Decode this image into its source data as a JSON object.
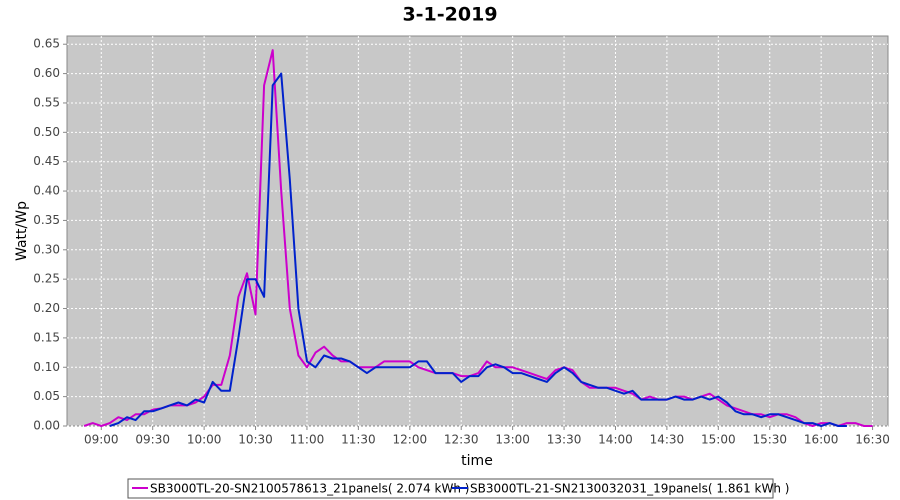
{
  "chart_data": {
    "type": "line",
    "title": "3-1-2019",
    "xlabel": "time",
    "ylabel": "Watt/Wp",
    "x": [
      530,
      535,
      540,
      545,
      550,
      555,
      560,
      565,
      570,
      575,
      580,
      585,
      590,
      595,
      600,
      605,
      610,
      615,
      620,
      625,
      630,
      635,
      640,
      645,
      650,
      655,
      660,
      665,
      670,
      675,
      680,
      685,
      690,
      695,
      700,
      705,
      710,
      715,
      720,
      725,
      730,
      735,
      740,
      745,
      750,
      755,
      760,
      765,
      770,
      775,
      780,
      785,
      790,
      795,
      800,
      805,
      810,
      815,
      820,
      825,
      830,
      835,
      840,
      845,
      850,
      855,
      860,
      865,
      870,
      875,
      880,
      885,
      890,
      895,
      900,
      905,
      910,
      915,
      920,
      925,
      930,
      935,
      940,
      945,
      950,
      955,
      960,
      965,
      970,
      975,
      980,
      985,
      990
    ],
    "series": [
      {
        "name": "SB3000TL-20-SN2100578613_21panels( 2.074 kWh )",
        "color": "#cc00cc",
        "values": [
          0,
          0.005,
          0,
          0.005,
          0.015,
          0.01,
          0.02,
          0.02,
          0.028,
          0.03,
          0.035,
          0.035,
          0.035,
          0.04,
          0.05,
          0.07,
          0.07,
          0.12,
          0.22,
          0.26,
          0.19,
          0.58,
          0.64,
          0.4,
          0.2,
          0.12,
          0.1,
          0.125,
          0.135,
          0.12,
          0.11,
          0.11,
          0.1,
          0.1,
          0.1,
          0.11,
          0.11,
          0.11,
          0.11,
          0.1,
          0.095,
          0.09,
          0.09,
          0.09,
          0.085,
          0.085,
          0.09,
          0.11,
          0.1,
          0.1,
          0.1,
          0.095,
          0.09,
          0.085,
          0.08,
          0.095,
          0.1,
          0.095,
          0.075,
          0.065,
          0.065,
          0.065,
          0.065,
          0.06,
          0.055,
          0.045,
          0.05,
          0.045,
          0.045,
          0.05,
          0.05,
          0.045,
          0.05,
          0.055,
          0.045,
          0.035,
          0.03,
          0.025,
          0.02,
          0.02,
          0.015,
          0.02,
          0.02,
          0.015,
          0.005,
          0,
          0.005,
          0.005,
          0,
          0.005,
          0.005,
          0,
          0
        ]
      },
      {
        "name": "SB3000TL-21-SN2130032031_19panels( 1.861 kWh )",
        "color": "#0022cc",
        "values": [
          null,
          null,
          null,
          0,
          0.005,
          0.015,
          0.01,
          0.025,
          0.025,
          0.03,
          0.035,
          0.04,
          0.035,
          0.045,
          0.04,
          0.075,
          0.06,
          0.06,
          0.15,
          0.25,
          0.25,
          0.22,
          0.58,
          0.6,
          0.42,
          0.2,
          0.11,
          0.1,
          0.12,
          0.115,
          0.115,
          0.11,
          0.1,
          0.09,
          0.1,
          0.1,
          0.1,
          0.1,
          0.1,
          0.11,
          0.11,
          0.09,
          0.09,
          0.09,
          0.075,
          0.085,
          0.085,
          0.1,
          0.105,
          0.1,
          0.09,
          0.09,
          0.085,
          0.08,
          0.075,
          0.09,
          0.1,
          0.09,
          0.075,
          0.07,
          0.065,
          0.065,
          0.06,
          0.055,
          0.06,
          0.045,
          0.045,
          0.045,
          0.045,
          0.05,
          0.045,
          0.045,
          0.05,
          0.045,
          0.05,
          0.04,
          0.025,
          0.02,
          0.02,
          0.015,
          0.02,
          0.02,
          0.015,
          0.01,
          0.005,
          0.005,
          0,
          0.005,
          0,
          0,
          null,
          null,
          null
        ]
      }
    ],
    "xlim": [
      520,
      999
    ],
    "ylim": [
      0,
      0.664
    ],
    "xticks": [
      {
        "value": 540,
        "label": "09:00"
      },
      {
        "value": 570,
        "label": "09:30"
      },
      {
        "value": 600,
        "label": "10:00"
      },
      {
        "value": 630,
        "label": "10:30"
      },
      {
        "value": 660,
        "label": "11:00"
      },
      {
        "value": 690,
        "label": "11:30"
      },
      {
        "value": 720,
        "label": "12:00"
      },
      {
        "value": 750,
        "label": "12:30"
      },
      {
        "value": 780,
        "label": "13:00"
      },
      {
        "value": 810,
        "label": "13:30"
      },
      {
        "value": 840,
        "label": "14:00"
      },
      {
        "value": 870,
        "label": "14:30"
      },
      {
        "value": 900,
        "label": "15:00"
      },
      {
        "value": 930,
        "label": "15:30"
      },
      {
        "value": 960,
        "label": "16:00"
      },
      {
        "value": 990,
        "label": "16:30"
      }
    ],
    "yticks": [
      {
        "value": 0,
        "label": "0.00"
      },
      0.05,
      {
        "value": 0.1,
        "label": "0.10"
      },
      0.15,
      {
        "value": 0.2,
        "label": "0.20"
      },
      0.25,
      {
        "value": 0.3,
        "label": "0.30"
      },
      0.35,
      {
        "value": 0.4,
        "label": "0.40"
      },
      0.45,
      {
        "value": 0.5,
        "label": "0.50"
      },
      0.55,
      {
        "value": 0.6,
        "label": "0.60"
      },
      0.65
    ],
    "grid": true
  }
}
